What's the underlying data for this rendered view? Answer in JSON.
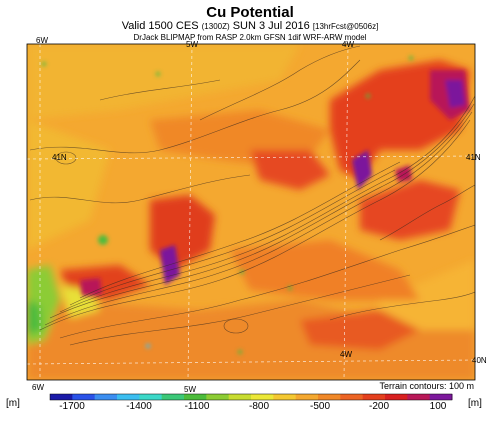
{
  "header": {
    "title": "Cu Potential",
    "subtitle_main": "Valid 1500 CES",
    "subtitle_utc": "(1300Z)",
    "subtitle_date": "SUN 3 Jul 2016",
    "subtitle_fcst": "[13hrFcst@0506z]",
    "model_line": "DrJack BLIPMAP from RASP 2.0km GFSN 1dif WRF-ARW model"
  },
  "map": {
    "lon_labels_top": [
      "6W",
      "5W",
      "4W"
    ],
    "lon_labels_bottom": [
      "6W",
      "5W",
      "4W"
    ],
    "lat_labels": [
      "41N",
      "40N"
    ],
    "terrain_note": "Terrain contours: 100 m"
  },
  "colorbar": {
    "unit_left": "[m]",
    "unit_right": "[m]",
    "tick_labels": [
      "-1700",
      "-1400",
      "-1100",
      "-800",
      "-500",
      "-200",
      "100"
    ],
    "colors": [
      "#1a1aa8",
      "#2a52e8",
      "#3c8ef0",
      "#3cbef0",
      "#3cd8c8",
      "#3cc878",
      "#4cbc3c",
      "#8ccc34",
      "#c8dc30",
      "#ece838",
      "#f4c832",
      "#f4a830",
      "#f08828",
      "#ec6424",
      "#e4401e",
      "#d82020",
      "#b81858",
      "#7c189c"
    ]
  },
  "legend_colors": {
    "purple": "#7c189c",
    "red": "#d82020",
    "orange": "#f08828",
    "yellow": "#ece838",
    "green": "#4cbc3c"
  }
}
